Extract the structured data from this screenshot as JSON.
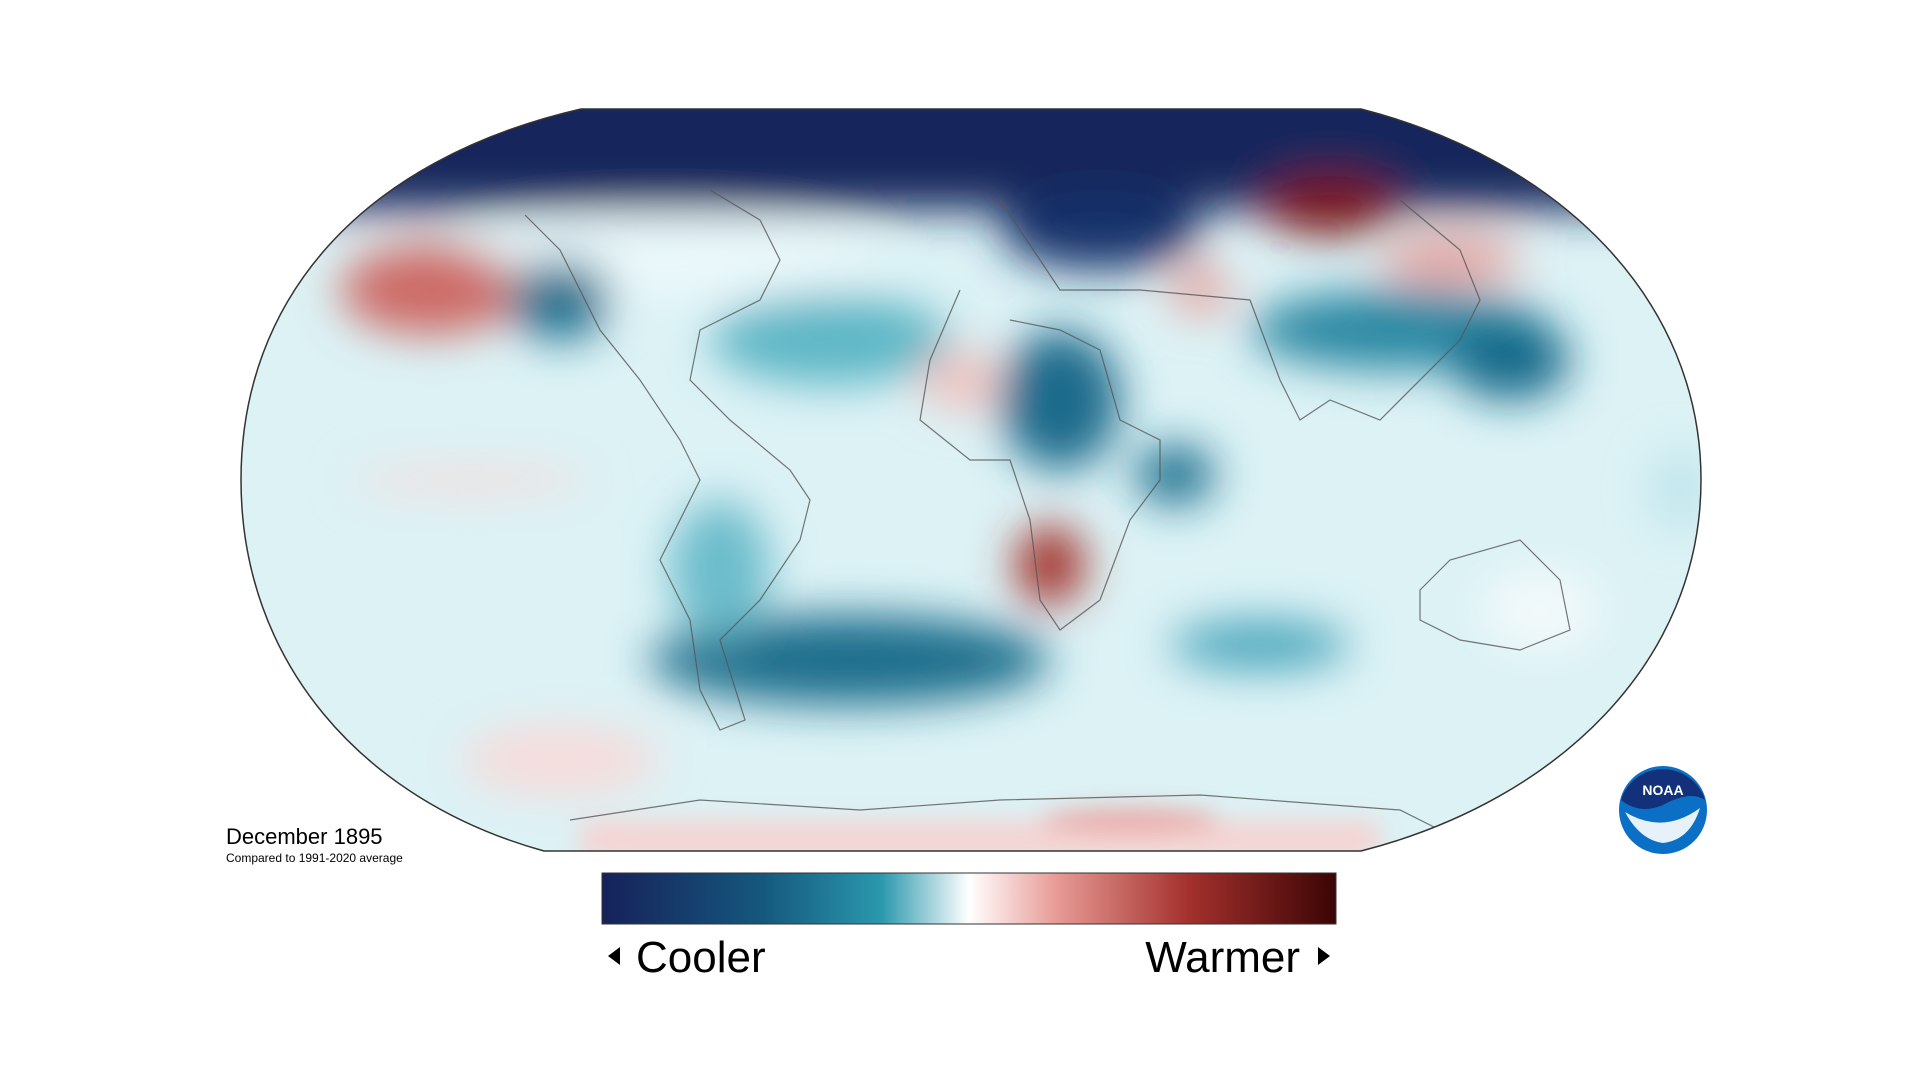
{
  "map": {
    "date": "December 1895",
    "subtitle": "Compared to 1991-2020 average"
  },
  "legend": {
    "low": "Cooler",
    "high": "Warmer"
  },
  "logo": {
    "text": "NOAA"
  }
}
